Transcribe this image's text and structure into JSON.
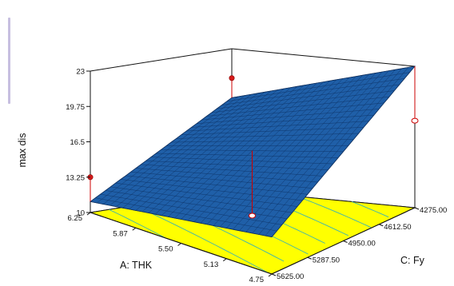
{
  "chart_data": {
    "type": "surface3d",
    "xlabel": "A: THK",
    "ylabel": "C: Fy",
    "zlabel": "max dis",
    "x_ticks": [
      "6.25",
      "5.87",
      "5.50",
      "5.13",
      "4.75"
    ],
    "y_ticks": [
      "4275.00",
      "4612.50",
      "4950.00",
      "5287.50",
      "5625.00"
    ],
    "z_ticks": [
      "23",
      "19.75",
      "16.5",
      "13.25",
      "10"
    ],
    "xlim": [
      4.75,
      6.25
    ],
    "ylim": [
      4275,
      5625
    ],
    "zlim": [
      10,
      23
    ],
    "surface_corners": [
      {
        "x": 6.25,
        "y": 5625,
        "z": 11.0
      },
      {
        "x": 4.75,
        "y": 5625,
        "z": 13.4
      },
      {
        "x": 6.25,
        "y": 4275,
        "z": 18.5
      },
      {
        "x": 4.75,
        "y": 4275,
        "z": 23.0
      }
    ],
    "design_points": [
      {
        "x": 6.25,
        "y": 5625,
        "z": 13.25,
        "above_surface": true
      },
      {
        "x": 6.25,
        "y": 4275,
        "z": 20.3,
        "above_surface": true
      },
      {
        "x": 4.75,
        "y": 4275,
        "z": 18.0,
        "above_surface": false
      },
      {
        "x": 5.5,
        "y": 4950,
        "z": 10.5,
        "above_surface": false
      }
    ],
    "surface_color": "#1f5fa8",
    "mesh_color": "#0a2a58",
    "floor_color": "#ffff00",
    "floor_contour_color": "#3cb3b3",
    "grid": false
  }
}
